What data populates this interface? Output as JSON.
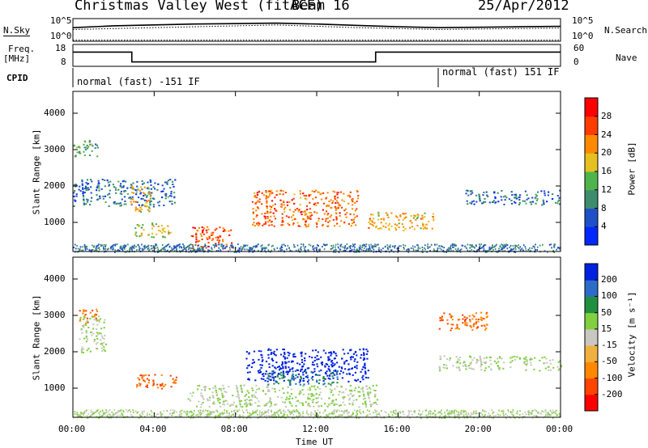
{
  "header": {
    "station": "Christmas Valley West (fitACF)",
    "beam": "Beam 16",
    "date": "25/Apr/2012"
  },
  "noise_panel": {
    "left_label": "N.Sky",
    "right_label": "N.Search",
    "left_ticks": [
      "10^5",
      "10^0"
    ],
    "right_ticks": [
      "10^5",
      "10^0"
    ]
  },
  "freq_panel": {
    "left_label_1": "Freq.",
    "left_label_2": "[MHz]",
    "left_ticks": [
      "18",
      "8"
    ],
    "right_label": "Nave",
    "right_ticks": [
      "60",
      "0"
    ]
  },
  "cpid_panel": {
    "label": "CPID",
    "segments": [
      "normal (fast) -151 IF",
      "normal (fast) 151 IF"
    ]
  },
  "power_panel": {
    "ylabel": "Slant Range [km]",
    "colorbar_label": "Power [dB]",
    "colorbar_ticks": [
      "28",
      "24",
      "20",
      "16",
      "12",
      "8",
      "4"
    ],
    "colors": [
      "#0028ff",
      "#2050c8",
      "#3d8c6e",
      "#50b44c",
      "#e6c020",
      "#ff8a00",
      "#ff3c00",
      "#ff0000"
    ]
  },
  "velocity_panel": {
    "ylabel": "Slant Range [km]",
    "colorbar_label": "Velocity [m s⁻¹]",
    "colorbar_ticks": [
      "200",
      "100",
      "50",
      "15",
      "-15",
      "-50",
      "-100",
      "-200"
    ],
    "colors": [
      "#0020e0",
      "#2c6cc8",
      "#209040",
      "#80d040",
      "#c8c8c0",
      "#f0b040",
      "#ff8800",
      "#ff4400",
      "#ff0000"
    ]
  },
  "x_axis": {
    "label": "Time UT",
    "ticks": [
      "00:00",
      "04:00",
      "08:00",
      "12:00",
      "16:00",
      "20:00",
      "00:00"
    ]
  },
  "chart_data": [
    {
      "type": "line",
      "title": "N.Sky / N.Search",
      "x": [
        0,
        2,
        4,
        6,
        8,
        10,
        12,
        14,
        16,
        18,
        20,
        22,
        24
      ],
      "series": [
        {
          "name": "N.Sky",
          "values": [
            3.0,
            3.4,
            3.6,
            3.8,
            3.9,
            4.0,
            3.8,
            3.5,
            3.2,
            3.0,
            3.1,
            3.2,
            3.3
          ]
        },
        {
          "name": "N.Search",
          "values": [
            2.6,
            2.8,
            3.0,
            3.2,
            3.4,
            3.6,
            3.3,
            3.0,
            2.8,
            2.6,
            2.7,
            2.8,
            2.9
          ]
        }
      ],
      "ylim": [
        0,
        5
      ]
    },
    {
      "type": "line",
      "title": "Freq / Nave",
      "x": [
        0,
        2.9,
        2.9,
        14.9,
        14.9,
        24
      ],
      "series": [
        {
          "name": "Freq",
          "values": [
            14.5,
            14.5,
            10.0,
            10.0,
            14.5,
            14.5
          ]
        },
        {
          "name": "Nave",
          "values": [
            20,
            20,
            20,
            20,
            20,
            20
          ]
        }
      ],
      "ylim": [
        8,
        18
      ]
    },
    {
      "type": "heatmap",
      "title": "Power",
      "xlim": [
        0,
        24
      ],
      "ylim": [
        200,
        4600
      ],
      "units": "dB",
      "regions": [
        {
          "t0": 0.0,
          "t1": 1.2,
          "r0": 2800,
          "r1": 3300,
          "value": 12
        },
        {
          "t0": 0.0,
          "t1": 5.0,
          "r0": 1450,
          "r1": 2200,
          "value": 8
        },
        {
          "t0": 2.8,
          "t1": 3.8,
          "r0": 1300,
          "r1": 2000,
          "value": 20
        },
        {
          "t0": 3.0,
          "t1": 4.8,
          "r0": 600,
          "r1": 1000,
          "value": 16
        },
        {
          "t0": 5.8,
          "t1": 7.8,
          "r0": 300,
          "r1": 900,
          "value": 26
        },
        {
          "t0": 8.8,
          "t1": 14.0,
          "r0": 900,
          "r1": 1900,
          "value": 24
        },
        {
          "t0": 14.5,
          "t1": 17.8,
          "r0": 800,
          "r1": 1300,
          "value": 20
        },
        {
          "t0": 19.2,
          "t1": 24.0,
          "r0": 1500,
          "r1": 1900,
          "value": 8
        }
      ]
    },
    {
      "type": "heatmap",
      "title": "Velocity",
      "xlim": [
        0,
        24
      ],
      "ylim": [
        200,
        4600
      ],
      "units": "m s-1",
      "regions": [
        {
          "t0": 0.2,
          "t1": 1.2,
          "r0": 2800,
          "r1": 3200,
          "value": -200
        },
        {
          "t0": 0.3,
          "t1": 1.6,
          "r0": 2000,
          "r1": 3000,
          "value": -15
        },
        {
          "t0": 3.1,
          "t1": 5.1,
          "r0": 1000,
          "r1": 1400,
          "value": -200
        },
        {
          "t0": 5.5,
          "t1": 15.0,
          "r0": 500,
          "r1": 1100,
          "value": -15
        },
        {
          "t0": 8.5,
          "t1": 14.5,
          "r0": 1200,
          "r1": 2100,
          "value": 200
        },
        {
          "t0": 9.5,
          "t1": 13.0,
          "r0": 1100,
          "r1": 1500,
          "value": 50
        },
        {
          "t0": 18.0,
          "t1": 24.0,
          "r0": 1500,
          "r1": 1900,
          "value": -15
        },
        {
          "t0": 18.0,
          "t1": 20.5,
          "r0": 2600,
          "r1": 3100,
          "value": -200
        }
      ]
    }
  ]
}
